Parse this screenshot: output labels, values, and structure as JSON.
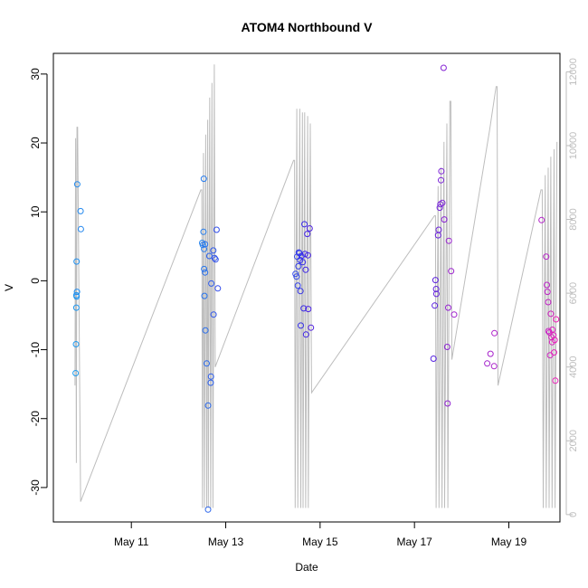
{
  "chart_data": {
    "type": "scatter",
    "title": "ATOM4 Northbound V",
    "xlabel": "Date",
    "ylabel": "V",
    "x_range": [
      "2023-05-09 08:20",
      "2023-05-20 02:00"
    ],
    "ylim": [
      -35,
      33
    ],
    "y2lim": [
      -200,
      12500
    ],
    "x_ticks": [
      {
        "date": "2023-05-11",
        "label": "May 11"
      },
      {
        "date": "2023-05-13",
        "label": "May 13"
      },
      {
        "date": "2023-05-15",
        "label": "May 15"
      },
      {
        "date": "2023-05-17",
        "label": "May 17"
      },
      {
        "date": "2023-05-19",
        "label": "May 19"
      }
    ],
    "y_ticks": [
      -30,
      -20,
      -10,
      0,
      10,
      20,
      30
    ],
    "y2_ticks": [
      0,
      2000,
      4000,
      6000,
      8000,
      10000,
      12000
    ],
    "grid": false,
    "colors": {
      "points_start": "#1e9df0",
      "points_mid": "#3a24e8",
      "points_end": "#f020b8",
      "line": "#bdbdbd",
      "axis": "#000000",
      "right_axis": "#bdbdbd"
    },
    "series": [
      {
        "kind": "points",
        "points": [
          [
            "2023-05-09 19:40",
            -13.4
          ],
          [
            "2023-05-09 19:50",
            -9.2
          ],
          [
            "2023-05-09 20:00",
            -3.9
          ],
          [
            "2023-05-09 20:00",
            -2.1
          ],
          [
            "2023-05-09 20:10",
            -2.3
          ],
          [
            "2023-05-09 20:10",
            2.8
          ],
          [
            "2023-05-09 20:20",
            -1.6
          ],
          [
            "2023-05-09 20:30",
            14.0
          ],
          [
            "2023-05-09 22:10",
            10.1
          ],
          [
            "2023-05-09 22:20",
            7.5
          ],
          [
            "2023-05-12 12:00",
            5.5
          ],
          [
            "2023-05-12 12:20",
            5.2
          ],
          [
            "2023-05-12 12:40",
            7.1
          ],
          [
            "2023-05-12 12:50",
            14.8
          ],
          [
            "2023-05-12 13:00",
            4.6
          ],
          [
            "2023-05-12 13:00",
            1.7
          ],
          [
            "2023-05-12 13:10",
            -2.2
          ],
          [
            "2023-05-12 13:30",
            5.3
          ],
          [
            "2023-05-12 13:30",
            1.2
          ],
          [
            "2023-05-12 13:40",
            -7.2
          ],
          [
            "2023-05-12 14:20",
            -12.0
          ],
          [
            "2023-05-12 15:00",
            -18.1
          ],
          [
            "2023-05-12 15:00",
            -33.2
          ],
          [
            "2023-05-12 15:40",
            3.6
          ],
          [
            "2023-05-12 16:20",
            -14.8
          ],
          [
            "2023-05-12 16:30",
            -13.9
          ],
          [
            "2023-05-12 16:40",
            -0.4
          ],
          [
            "2023-05-12 17:40",
            4.4
          ],
          [
            "2023-05-12 17:50",
            -4.9
          ],
          [
            "2023-05-12 18:20",
            3.3
          ],
          [
            "2023-05-12 18:50",
            3.1
          ],
          [
            "2023-05-12 19:20",
            7.4
          ],
          [
            "2023-05-12 20:00",
            -1.1
          ],
          [
            "2023-05-14 11:30",
            1.0
          ],
          [
            "2023-05-14 12:00",
            0.6
          ],
          [
            "2023-05-14 12:20",
            3.5
          ],
          [
            "2023-05-14 12:40",
            -0.7
          ],
          [
            "2023-05-14 13:00",
            2.1
          ],
          [
            "2023-05-14 13:10",
            4.1
          ],
          [
            "2023-05-14 13:30",
            4.0
          ],
          [
            "2023-05-14 13:50",
            3.0
          ],
          [
            "2023-05-14 14:00",
            -1.5
          ],
          [
            "2023-05-14 14:10",
            -6.5
          ],
          [
            "2023-05-14 14:30",
            3.6
          ],
          [
            "2023-05-14 15:10",
            2.7
          ],
          [
            "2023-05-14 15:40",
            -4.0
          ],
          [
            "2023-05-14 16:00",
            8.2
          ],
          [
            "2023-05-14 16:20",
            3.9
          ],
          [
            "2023-05-14 16:40",
            1.6
          ],
          [
            "2023-05-14 16:50",
            -7.8
          ],
          [
            "2023-05-14 17:30",
            6.8
          ],
          [
            "2023-05-14 17:50",
            3.7
          ],
          [
            "2023-05-14 18:00",
            -4.1
          ],
          [
            "2023-05-14 18:40",
            7.6
          ],
          [
            "2023-05-14 19:20",
            -6.8
          ],
          [
            "2023-05-17 09:40",
            -11.3
          ],
          [
            "2023-05-17 10:20",
            -3.6
          ],
          [
            "2023-05-17 10:40",
            0.1
          ],
          [
            "2023-05-17 11:00",
            -1.2
          ],
          [
            "2023-05-17 11:10",
            -1.9
          ],
          [
            "2023-05-17 12:00",
            6.6
          ],
          [
            "2023-05-17 12:20",
            7.4
          ],
          [
            "2023-05-17 12:50",
            10.6
          ],
          [
            "2023-05-17 13:10",
            11.1
          ],
          [
            "2023-05-17 13:30",
            14.6
          ],
          [
            "2023-05-17 13:40",
            15.9
          ],
          [
            "2023-05-17 14:10",
            11.3
          ],
          [
            "2023-05-17 14:50",
            30.9
          ],
          [
            "2023-05-17 15:10",
            8.9
          ],
          [
            "2023-05-17 16:40",
            -9.6
          ],
          [
            "2023-05-17 16:50",
            -17.8
          ],
          [
            "2023-05-17 17:10",
            -3.9
          ],
          [
            "2023-05-17 17:30",
            5.8
          ],
          [
            "2023-05-17 18:40",
            1.4
          ],
          [
            "2023-05-17 20:10",
            -4.9
          ],
          [
            "2023-05-18 13:00",
            -12.0
          ],
          [
            "2023-05-18 14:40",
            -10.6
          ],
          [
            "2023-05-18 16:30",
            -12.4
          ],
          [
            "2023-05-18 16:40",
            -7.6
          ],
          [
            "2023-05-19 16:40",
            8.8
          ],
          [
            "2023-05-19 19:00",
            3.5
          ],
          [
            "2023-05-19 19:20",
            -0.6
          ],
          [
            "2023-05-19 19:40",
            -1.6
          ],
          [
            "2023-05-19 20:00",
            -3.1
          ],
          [
            "2023-05-19 20:10",
            -7.3
          ],
          [
            "2023-05-19 20:40",
            -7.5
          ],
          [
            "2023-05-19 21:00",
            -10.8
          ],
          [
            "2023-05-19 21:20",
            -4.8
          ],
          [
            "2023-05-19 21:40",
            -8.2
          ],
          [
            "2023-05-19 22:00",
            -8.9
          ],
          [
            "2023-05-19 22:10",
            -7.1
          ],
          [
            "2023-05-19 22:40",
            -7.9
          ],
          [
            "2023-05-19 23:00",
            -10.4
          ],
          [
            "2023-05-19 23:20",
            -8.6
          ],
          [
            "2023-05-19 23:40",
            -14.5
          ],
          [
            "2023-05-20 00:00",
            -5.6
          ]
        ]
      },
      {
        "kind": "line",
        "axis": "right",
        "points": [
          [
            "2023-05-09 19:20",
            3500
          ],
          [
            "2023-05-09 19:40",
            10200
          ],
          [
            "2023-05-09 20:00",
            1400
          ],
          [
            "2023-05-09 20:20",
            10500
          ],
          [
            "2023-05-09 20:40",
            10500
          ],
          [
            "2023-05-09 22:10",
            350
          ],
          [
            "2023-05-12 11:20",
            8800
          ],
          [
            "2023-05-12 11:50",
            8800
          ],
          [
            "2023-05-12 12:10",
            180
          ],
          [
            "2023-05-12 12:40",
            9800
          ],
          [
            "2023-05-12 13:10",
            180
          ],
          [
            "2023-05-12 13:50",
            10300
          ],
          [
            "2023-05-12 14:20",
            180
          ],
          [
            "2023-05-12 14:50",
            10700
          ],
          [
            "2023-05-12 15:10",
            180
          ],
          [
            "2023-05-12 15:50",
            11300
          ],
          [
            "2023-05-12 16:20",
            180
          ],
          [
            "2023-05-12 17:00",
            11700
          ],
          [
            "2023-05-12 17:30",
            180
          ],
          [
            "2023-05-12 18:10",
            12200
          ],
          [
            "2023-05-12 18:40",
            4000
          ],
          [
            "2023-05-14 10:30",
            9600
          ],
          [
            "2023-05-14 11:00",
            9600
          ],
          [
            "2023-05-14 11:20",
            180
          ],
          [
            "2023-05-14 12:10",
            11000
          ],
          [
            "2023-05-14 12:40",
            180
          ],
          [
            "2023-05-14 13:40",
            11000
          ],
          [
            "2023-05-14 14:10",
            180
          ],
          [
            "2023-05-14 15:00",
            10900
          ],
          [
            "2023-05-14 15:20",
            180
          ],
          [
            "2023-05-14 16:10",
            10900
          ],
          [
            "2023-05-14 16:40",
            180
          ],
          [
            "2023-05-14 17:40",
            10800
          ],
          [
            "2023-05-14 18:00",
            180
          ],
          [
            "2023-05-14 19:00",
            10600
          ],
          [
            "2023-05-14 19:40",
            3300
          ],
          [
            "2023-05-17 10:10",
            8100
          ],
          [
            "2023-05-17 10:40",
            8100
          ],
          [
            "2023-05-17 11:00",
            180
          ],
          [
            "2023-05-17 12:00",
            8900
          ],
          [
            "2023-05-17 12:30",
            180
          ],
          [
            "2023-05-17 13:30",
            9400
          ],
          [
            "2023-05-17 14:00",
            180
          ],
          [
            "2023-05-17 15:00",
            10100
          ],
          [
            "2023-05-17 15:20",
            180
          ],
          [
            "2023-05-17 16:30",
            10600
          ],
          [
            "2023-05-17 17:00",
            180
          ],
          [
            "2023-05-17 18:00",
            11200
          ],
          [
            "2023-05-17 18:30",
            11200
          ],
          [
            "2023-05-17 19:00",
            4200
          ],
          [
            "2023-05-18 14:10",
            10400
          ],
          [
            "2023-05-18 17:30",
            11600
          ],
          [
            "2023-05-18 18:00",
            11600
          ],
          [
            "2023-05-18 18:30",
            3500
          ],
          [
            "2023-05-19 16:20",
            8800
          ],
          [
            "2023-05-19 17:00",
            8800
          ],
          [
            "2023-05-19 17:30",
            180
          ],
          [
            "2023-05-19 18:30",
            9200
          ],
          [
            "2023-05-19 19:00",
            180
          ],
          [
            "2023-05-19 20:00",
            9400
          ],
          [
            "2023-05-19 20:30",
            180
          ],
          [
            "2023-05-19 21:20",
            9700
          ],
          [
            "2023-05-19 22:00",
            180
          ],
          [
            "2023-05-19 23:00",
            9900
          ],
          [
            "2023-05-19 23:30",
            180
          ],
          [
            "2023-05-20 00:30",
            10100
          ]
        ]
      }
    ]
  }
}
